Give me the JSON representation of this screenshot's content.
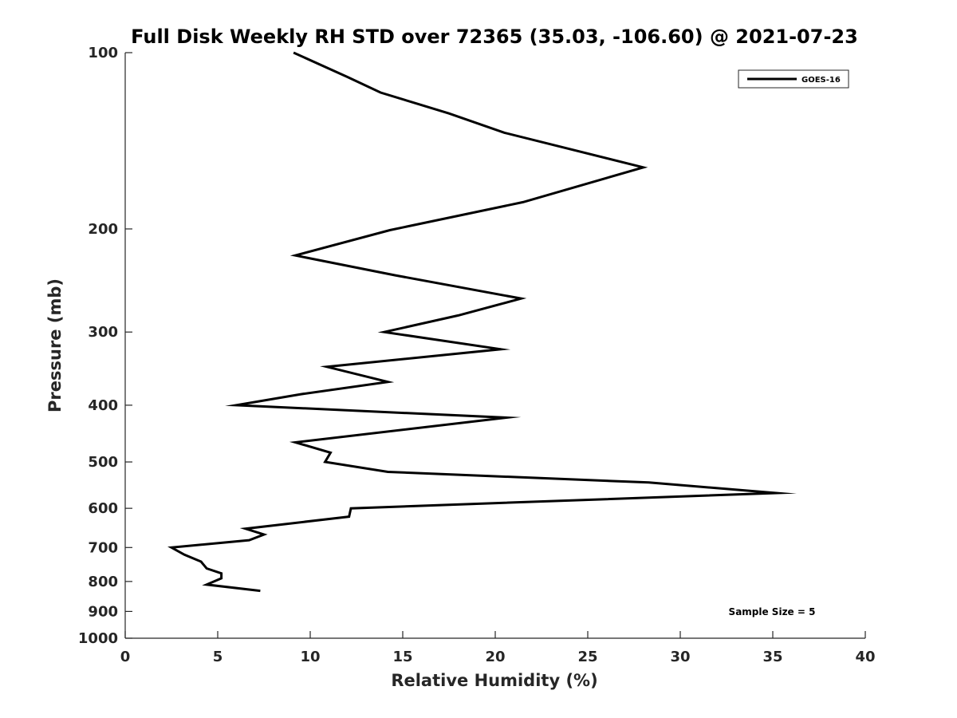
{
  "chart_data": {
    "type": "line",
    "title": "Full Disk Weekly RH STD over 72365 (35.03, -106.60) @ 2021-07-23",
    "xlabel": "Relative Humidity (%)",
    "ylabel": "Pressure (mb)",
    "xlim": [
      0,
      40
    ],
    "ylim": [
      100,
      1000
    ],
    "yscale": "log",
    "y_reversed": true,
    "xticks": [
      "0",
      "5",
      "10",
      "15",
      "20",
      "25",
      "30",
      "35",
      "40"
    ],
    "yticks": [
      "100",
      "200",
      "300",
      "400",
      "500",
      "600",
      "700",
      "800",
      "900",
      "1000"
    ],
    "grid": false,
    "legend_position": "top-right",
    "series": [
      {
        "name": "GOES-16",
        "color": "#000000",
        "points": [
          [
            9.1,
            100
          ],
          [
            12.0,
            110
          ],
          [
            13.8,
            117
          ],
          [
            17.5,
            127
          ],
          [
            20.5,
            137
          ],
          [
            28.0,
            157
          ],
          [
            21.5,
            180
          ],
          [
            14.3,
            201
          ],
          [
            9.2,
            222
          ],
          [
            14.6,
            240
          ],
          [
            21.4,
            263
          ],
          [
            18.0,
            281
          ],
          [
            14.0,
            300
          ],
          [
            20.3,
            321
          ],
          [
            10.9,
            344
          ],
          [
            14.2,
            365
          ],
          [
            9.5,
            383
          ],
          [
            6.0,
            400
          ],
          [
            20.6,
            420
          ],
          [
            9.2,
            463
          ],
          [
            11.1,
            482
          ],
          [
            10.8,
            500
          ],
          [
            14.2,
            520
          ],
          [
            28.3,
            542
          ],
          [
            35.2,
            565
          ],
          [
            12.2,
            600
          ],
          [
            12.1,
            620
          ],
          [
            6.5,
            650
          ],
          [
            7.5,
            665
          ],
          [
            6.7,
            680
          ],
          [
            2.5,
            700
          ],
          [
            3.2,
            720
          ],
          [
            4.1,
            740
          ],
          [
            4.4,
            760
          ],
          [
            5.2,
            775
          ],
          [
            5.2,
            790
          ],
          [
            4.4,
            810
          ],
          [
            7.3,
            830
          ]
        ]
      }
    ],
    "annotations": [
      "Sample Size = 5"
    ]
  }
}
